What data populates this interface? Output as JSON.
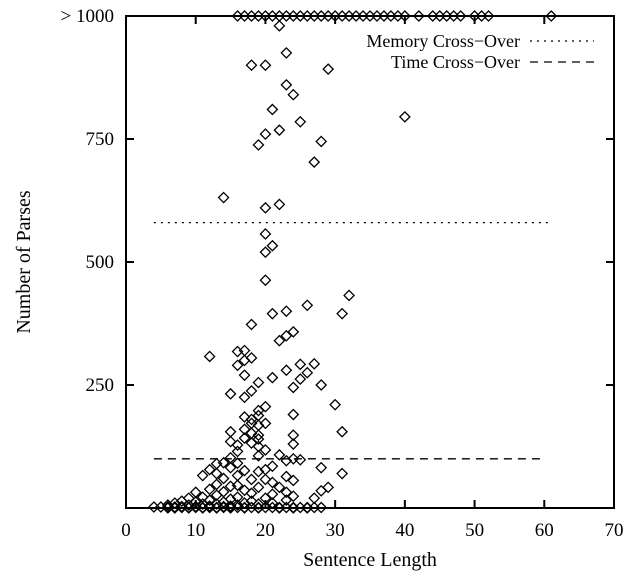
{
  "chart_data": {
    "type": "scatter",
    "title": "",
    "xlabel": "Sentence Length",
    "ylabel": "Number of Parses",
    "xlim": [
      0,
      70
    ],
    "ylim": [
      0,
      1000
    ],
    "x_ticks": [
      0,
      10,
      20,
      30,
      40,
      50,
      60,
      70
    ],
    "y_ticks": [
      {
        "value": 250,
        "label": "250"
      },
      {
        "value": 500,
        "label": "500"
      },
      {
        "value": 750,
        "label": "750"
      },
      {
        "value": 1000,
        "label": "> 1000"
      }
    ],
    "grid": false,
    "legend_position": "top-right",
    "reference_lines": [
      {
        "name": "Memory Cross−Over",
        "style": "dotted",
        "y": 580,
        "x_range": [
          4,
          61
        ]
      },
      {
        "name": "Time Cross−Over",
        "style": "dashed",
        "y": 100,
        "x_range": [
          4,
          60
        ]
      }
    ],
    "series": [
      {
        "marker": "diamond",
        "points": [
          [
            16,
            1000
          ],
          [
            17,
            1000
          ],
          [
            18,
            1000
          ],
          [
            19,
            1000
          ],
          [
            20,
            1000
          ],
          [
            21,
            1000
          ],
          [
            22,
            1000
          ],
          [
            23,
            1000
          ],
          [
            24,
            1000
          ],
          [
            25,
            1000
          ],
          [
            26,
            1000
          ],
          [
            27,
            1000
          ],
          [
            28,
            1000
          ],
          [
            29,
            1000
          ],
          [
            30,
            1000
          ],
          [
            31,
            1000
          ],
          [
            32,
            1000
          ],
          [
            33,
            1000
          ],
          [
            34,
            1000
          ],
          [
            35,
            1000
          ],
          [
            36,
            1000
          ],
          [
            37,
            1000
          ],
          [
            38,
            1000
          ],
          [
            39,
            1000
          ],
          [
            40,
            1000
          ],
          [
            42,
            1000
          ],
          [
            44,
            1000
          ],
          [
            45,
            1000
          ],
          [
            46,
            1000
          ],
          [
            47,
            1000
          ],
          [
            48,
            1000
          ],
          [
            50,
            1000
          ],
          [
            51,
            1000
          ],
          [
            52,
            1000
          ],
          [
            61,
            1000
          ],
          [
            22,
            980
          ],
          [
            23,
            925
          ],
          [
            29,
            892
          ],
          [
            18,
            900
          ],
          [
            20,
            900
          ],
          [
            23,
            860
          ],
          [
            24,
            840
          ],
          [
            21,
            810
          ],
          [
            40,
            795
          ],
          [
            25,
            785
          ],
          [
            22,
            768
          ],
          [
            20,
            760
          ],
          [
            28,
            745
          ],
          [
            19,
            738
          ],
          [
            27,
            703
          ],
          [
            14,
            631
          ],
          [
            20,
            610
          ],
          [
            22,
            617
          ],
          [
            20,
            557
          ],
          [
            21,
            533
          ],
          [
            20,
            520
          ],
          [
            20,
            463
          ],
          [
            32,
            432
          ],
          [
            26,
            412
          ],
          [
            21,
            395
          ],
          [
            23,
            400
          ],
          [
            31,
            395
          ],
          [
            18,
            373
          ],
          [
            24,
            358
          ],
          [
            23,
            350
          ],
          [
            22,
            340
          ],
          [
            17,
            320
          ],
          [
            16,
            318
          ],
          [
            12,
            308
          ],
          [
            18,
            305
          ],
          [
            17,
            300
          ],
          [
            16,
            290
          ],
          [
            25,
            292
          ],
          [
            27,
            293
          ],
          [
            23,
            280
          ],
          [
            26,
            275
          ],
          [
            17,
            270
          ],
          [
            25,
            262
          ],
          [
            19,
            255
          ],
          [
            21,
            265
          ],
          [
            28,
            250
          ],
          [
            24,
            245
          ],
          [
            18,
            238
          ],
          [
            15,
            232
          ],
          [
            17,
            225
          ],
          [
            30,
            210
          ],
          [
            20,
            206
          ],
          [
            19,
            198
          ],
          [
            24,
            190
          ],
          [
            19,
            188
          ],
          [
            17,
            185
          ],
          [
            18,
            180
          ],
          [
            18,
            172
          ],
          [
            20,
            172
          ],
          [
            19,
            168
          ],
          [
            17,
            160
          ],
          [
            15,
            155
          ],
          [
            18,
            152
          ],
          [
            31,
            155
          ],
          [
            19,
            148
          ],
          [
            24,
            148
          ],
          [
            17,
            142
          ],
          [
            19,
            140
          ],
          [
            15,
            135
          ],
          [
            18,
            132
          ],
          [
            24,
            130
          ],
          [
            16,
            128
          ],
          [
            19,
            125
          ],
          [
            20,
            118
          ],
          [
            16,
            115
          ],
          [
            22,
            108
          ],
          [
            19,
            106
          ],
          [
            15,
            102
          ],
          [
            24,
            100
          ],
          [
            25,
            98
          ],
          [
            23,
            96
          ],
          [
            14,
            92
          ],
          [
            16,
            91
          ],
          [
            13,
            90
          ],
          [
            21,
            85
          ],
          [
            28,
            82
          ],
          [
            15,
            82
          ],
          [
            20,
            78
          ],
          [
            17,
            76
          ],
          [
            12,
            78
          ],
          [
            19,
            74
          ],
          [
            31,
            70
          ],
          [
            13,
            70
          ],
          [
            16,
            66
          ],
          [
            23,
            64
          ],
          [
            11,
            66
          ],
          [
            14,
            60
          ],
          [
            18,
            58
          ],
          [
            20,
            58
          ],
          [
            24,
            56
          ],
          [
            21,
            52
          ],
          [
            13,
            48
          ],
          [
            16,
            46
          ],
          [
            15,
            44
          ],
          [
            19,
            42
          ],
          [
            22,
            42
          ],
          [
            29,
            42
          ],
          [
            12,
            38
          ],
          [
            17,
            36
          ],
          [
            28,
            35
          ],
          [
            14,
            33
          ],
          [
            10,
            32
          ],
          [
            23,
            32
          ],
          [
            18,
            30
          ],
          [
            21,
            28
          ],
          [
            13,
            26
          ],
          [
            24,
            24
          ],
          [
            16,
            22
          ],
          [
            11,
            22
          ],
          [
            20,
            20
          ],
          [
            27,
            20
          ],
          [
            9,
            20
          ],
          [
            15,
            18
          ],
          [
            12,
            16
          ],
          [
            23,
            16
          ],
          [
            8,
            14
          ],
          [
            18,
            14
          ],
          [
            14,
            12
          ],
          [
            10,
            12
          ],
          [
            17,
            10
          ],
          [
            21,
            10
          ],
          [
            7,
            10
          ],
          [
            13,
            8
          ],
          [
            19,
            8
          ],
          [
            11,
            8
          ],
          [
            16,
            6
          ],
          [
            9,
            6
          ],
          [
            6,
            6
          ],
          [
            15,
            4
          ],
          [
            12,
            4
          ],
          [
            14,
            3
          ],
          [
            8,
            3
          ],
          [
            10,
            3
          ],
          [
            4,
            2
          ],
          [
            5,
            2
          ],
          [
            6,
            2
          ],
          [
            7,
            2
          ],
          [
            8,
            1
          ],
          [
            9,
            1
          ],
          [
            10,
            1
          ],
          [
            11,
            1
          ],
          [
            12,
            1
          ],
          [
            13,
            1
          ],
          [
            14,
            1
          ],
          [
            15,
            1
          ],
          [
            16,
            1
          ],
          [
            17,
            1
          ],
          [
            18,
            1
          ],
          [
            19,
            1
          ],
          [
            20,
            1
          ],
          [
            21,
            1
          ],
          [
            22,
            1
          ],
          [
            23,
            1
          ],
          [
            24,
            1
          ],
          [
            25,
            1
          ],
          [
            26,
            1
          ],
          [
            27,
            1
          ],
          [
            28,
            1
          ],
          [
            6,
            0
          ],
          [
            7,
            0
          ],
          [
            9,
            0
          ],
          [
            11,
            0
          ],
          [
            13,
            0
          ],
          [
            15,
            0
          ],
          [
            17,
            0
          ],
          [
            19,
            0
          ],
          [
            22,
            0
          ],
          [
            24,
            0
          ],
          [
            26,
            0
          ]
        ]
      }
    ]
  }
}
